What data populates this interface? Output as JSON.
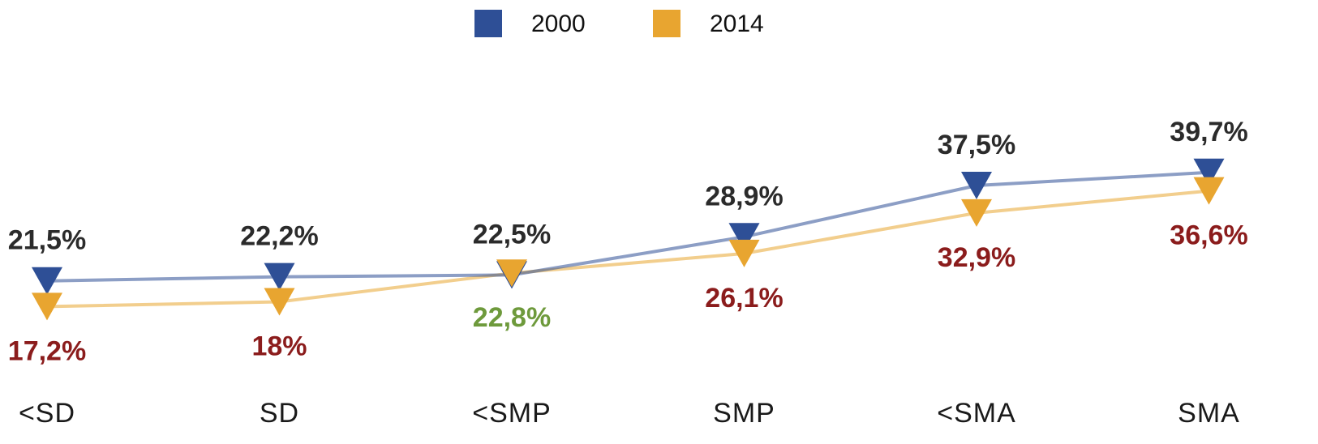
{
  "chart_data": {
    "type": "line",
    "categories": [
      "<SD",
      "SD",
      "<SMP",
      "SMP",
      "<SMA",
      "SMA"
    ],
    "series": [
      {
        "name": "2000",
        "color": "#2e4f96",
        "label_colors": [
          "#2b2b2b",
          "#2b2b2b",
          "#2b2b2b",
          "#2b2b2b",
          "#2b2b2b",
          "#2b2b2b"
        ],
        "values": [
          21.5,
          22.2,
          22.5,
          28.9,
          37.5,
          39.7
        ],
        "value_labels": [
          "21,5%",
          "22,2%",
          "22,5%",
          "28,9%",
          "37,5%",
          "39,7%"
        ]
      },
      {
        "name": "2014",
        "color": "#e8a530",
        "label_colors": [
          "#8b1c1c",
          "#8b1c1c",
          "#6e9a3c",
          "#8b1c1c",
          "#8b1c1c",
          "#8b1c1c"
        ],
        "values": [
          17.2,
          18,
          22.8,
          26.1,
          32.9,
          36.6
        ],
        "value_labels": [
          "17,2%",
          "18%",
          "22,8%",
          "26,1%",
          "32,9%",
          "36,6%"
        ]
      }
    ],
    "ylim": [
      0,
      50
    ]
  }
}
